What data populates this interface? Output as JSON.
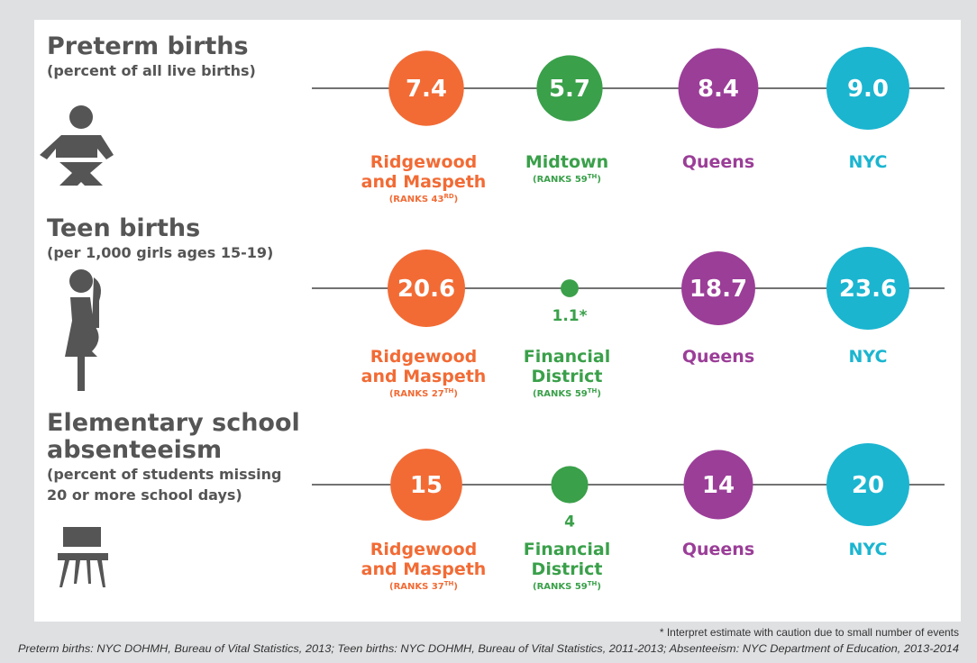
{
  "rows": [
    {
      "title": [
        "Preterm births"
      ],
      "subtitle": [
        "(percent of all live births)"
      ],
      "items": [
        {
          "value": 7.4,
          "label": "7.4",
          "place": [
            "Ridgewood",
            "and Maspeth"
          ],
          "rank_prefix": "(RANKS 43",
          "rank_sup": "RD",
          "rank_close": ")"
        },
        {
          "value": 5.7,
          "label": "5.7",
          "place": [
            "Midtown"
          ],
          "rank_prefix": "(RANKS 59",
          "rank_sup": "TH",
          "rank_close": ")"
        },
        {
          "value": 8.4,
          "label": "8.4",
          "place": [
            "Queens"
          ]
        },
        {
          "value": 9.0,
          "label": "9.0",
          "place": [
            "NYC"
          ]
        }
      ]
    },
    {
      "title": [
        "Teen births"
      ],
      "subtitle": [
        "(per 1,000 girls ages 15-19)"
      ],
      "items": [
        {
          "value": 20.6,
          "label": "20.6",
          "place": [
            "Ridgewood",
            "and Maspeth"
          ],
          "rank_prefix": "(RANKS 27",
          "rank_sup": "TH",
          "rank_close": ")"
        },
        {
          "value": 1.1,
          "label": "1.1*",
          "place": [
            "Financial",
            "District"
          ],
          "rank_prefix": "(RANKS 59",
          "rank_sup": "TH",
          "rank_close": ")"
        },
        {
          "value": 18.7,
          "label": "18.7",
          "place": [
            "Queens"
          ]
        },
        {
          "value": 23.6,
          "label": "23.6",
          "place": [
            "NYC"
          ]
        }
      ]
    },
    {
      "title": [
        "Elementary school",
        "absenteeism"
      ],
      "subtitle": [
        "(percent of students missing",
        "20 or more school days)"
      ],
      "items": [
        {
          "value": 15,
          "label": "15",
          "place": [
            "Ridgewood",
            "and Maspeth"
          ],
          "rank_prefix": "(RANKS 37",
          "rank_sup": "TH",
          "rank_close": ")"
        },
        {
          "value": 4,
          "label": "4",
          "place": [
            "Financial",
            "District"
          ],
          "rank_prefix": "(RANKS 59",
          "rank_sup": "TH",
          "rank_close": ")"
        },
        {
          "value": 14,
          "label": "14",
          "place": [
            "Queens"
          ]
        },
        {
          "value": 20,
          "label": "20",
          "place": [
            "NYC"
          ]
        }
      ]
    }
  ],
  "colors": [
    "#f26b35",
    "#3aa04a",
    "#9b3e98",
    "#1bb5d0"
  ],
  "footnote": "* Interpret estimate with caution due to small number of events",
  "sources": "Preterm births: NYC DOHMH, Bureau of Vital Statistics, 2013; Teen births: NYC DOHMH, Bureau of Vital Statistics, 2011-2013; Absenteeism: NYC Department of Education, 2013-2014"
}
